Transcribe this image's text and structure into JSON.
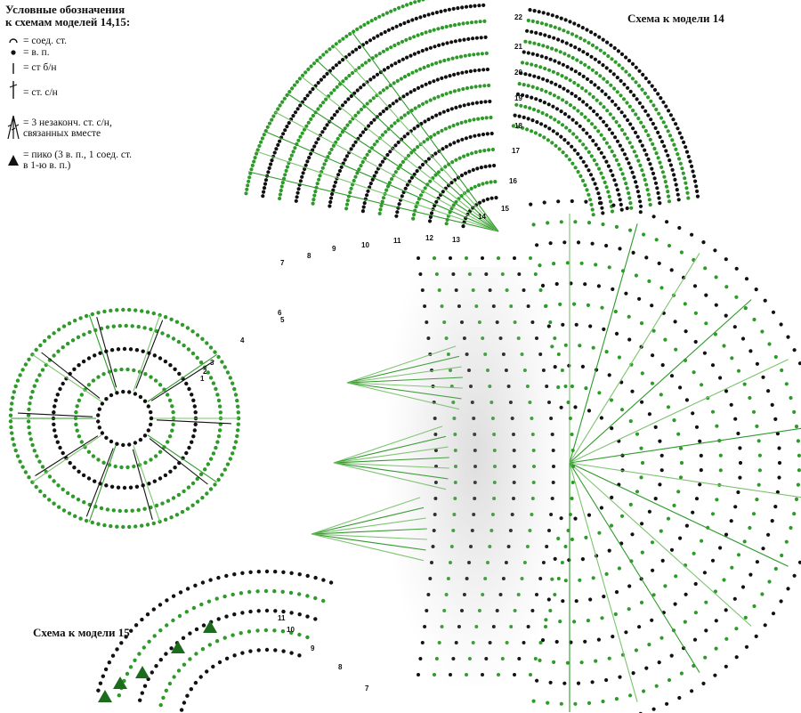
{
  "legend": {
    "title_line1": "Условные обозначения",
    "title_line2": "к схемам моделей 14,15:",
    "items": [
      {
        "symbol": "slip-stitch",
        "text": "= соед. ст."
      },
      {
        "symbol": "chain",
        "text": "= в. п."
      },
      {
        "symbol": "sc",
        "text": "= ст б/н"
      },
      {
        "symbol": "dc",
        "text": "= ст. с/н"
      },
      {
        "symbol": "cluster",
        "text": "= 3 незаконч. ст. с/н,",
        "text2": "связанных вместе"
      },
      {
        "symbol": "picot",
        "text": "= пико (3 в. п., 1 соед. ст.",
        "text2": "в 1-ю в. п.)"
      }
    ]
  },
  "scheme14": {
    "title": "Схема к модели 14",
    "row_numbers": [
      "22",
      "21",
      "20",
      "19",
      "18",
      "17",
      "16",
      "15",
      "14",
      "13",
      "12",
      "11",
      "10",
      "9",
      "8",
      "7",
      "6",
      "5",
      "4",
      "3",
      "2",
      "1"
    ]
  },
  "scheme15": {
    "title": "Схема к модели 15",
    "row_numbers": [
      "11",
      "10",
      "9",
      "8",
      "7"
    ]
  },
  "colors": {
    "green": "#2e9a2a",
    "light_green": "#7cc46e",
    "black": "#111111"
  }
}
